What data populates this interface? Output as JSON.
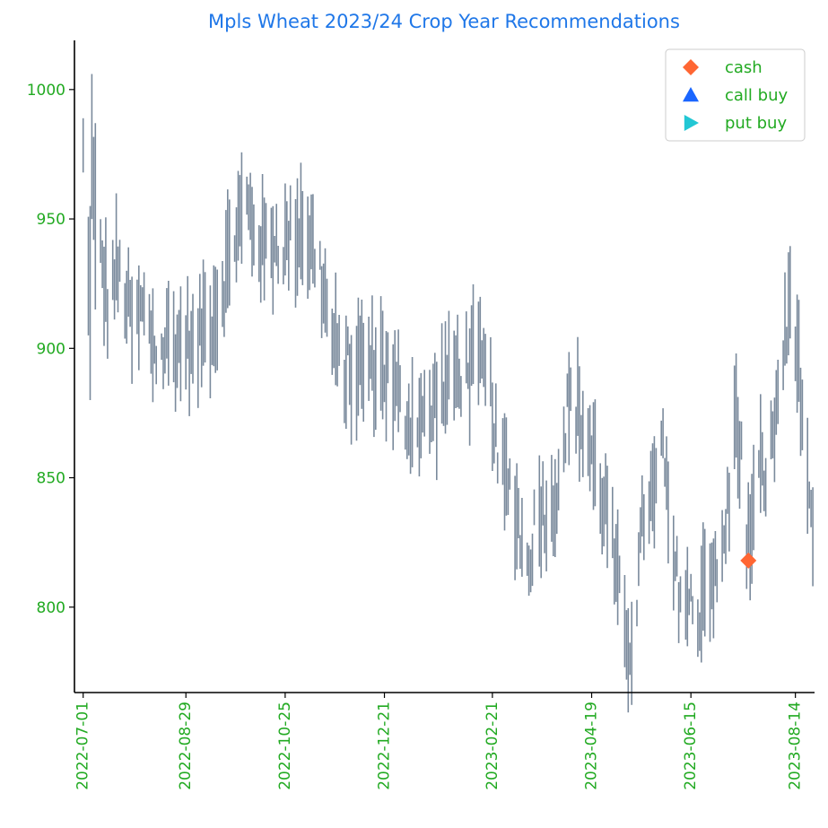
{
  "chart_data": {
    "type": "range-bar",
    "title": "Mpls Wheat 2023/24 Crop Year Recommendations",
    "xlabel": "",
    "ylabel": "",
    "x_axis": {
      "kind": "date",
      "range": [
        "2022-06-26",
        "2023-08-25"
      ],
      "tick_labels": [
        "2022-07-01",
        "2022-08-29",
        "2022-10-25",
        "2022-12-21",
        "2023-02-21",
        "2023-04-19",
        "2023-06-15",
        "2023-08-14"
      ]
    },
    "y_axis": {
      "range": [
        767,
        1019
      ],
      "tick_values": [
        800,
        850,
        900,
        950,
        1000
      ],
      "tick_labels": [
        "800",
        "850",
        "900",
        "950",
        "1000"
      ]
    },
    "series_color": "#7a8a9c",
    "anchors": [
      [
        "2022-07-01",
        975
      ],
      [
        "2022-07-04",
        925
      ],
      [
        "2022-07-08",
        968
      ],
      [
        "2022-07-11",
        935
      ],
      [
        "2022-07-15",
        918
      ],
      [
        "2022-07-20",
        930
      ],
      [
        "2022-07-25",
        922
      ],
      [
        "2022-07-30",
        905
      ],
      [
        "2022-08-04",
        915
      ],
      [
        "2022-08-09",
        905
      ],
      [
        "2022-08-14",
        895
      ],
      [
        "2022-08-19",
        905
      ],
      [
        "2022-08-24",
        900
      ],
      [
        "2022-08-29",
        905
      ],
      [
        "2022-09-03",
        895
      ],
      [
        "2022-09-08",
        910
      ],
      [
        "2022-09-13",
        912
      ],
      [
        "2022-09-18",
        920
      ],
      [
        "2022-09-23",
        935
      ],
      [
        "2022-09-28",
        948
      ],
      [
        "2022-10-03",
        955
      ],
      [
        "2022-10-08",
        945
      ],
      [
        "2022-10-13",
        938
      ],
      [
        "2022-10-18",
        942
      ],
      [
        "2022-10-25",
        940
      ],
      [
        "2022-10-30",
        945
      ],
      [
        "2022-11-04",
        948
      ],
      [
        "2022-11-09",
        940
      ],
      [
        "2022-11-14",
        930
      ],
      [
        "2022-11-19",
        910
      ],
      [
        "2022-11-24",
        895
      ],
      [
        "2022-11-29",
        893
      ],
      [
        "2022-12-04",
        890
      ],
      [
        "2022-12-09",
        895
      ],
      [
        "2022-12-14",
        893
      ],
      [
        "2022-12-21",
        893
      ],
      [
        "2022-12-26",
        885
      ],
      [
        "2022-12-31",
        877
      ],
      [
        "2023-01-05",
        872
      ],
      [
        "2023-01-10",
        875
      ],
      [
        "2023-01-15",
        870
      ],
      [
        "2023-01-20",
        882
      ],
      [
        "2023-01-25",
        885
      ],
      [
        "2023-01-30",
        890
      ],
      [
        "2023-02-05",
        892
      ],
      [
        "2023-02-10",
        895
      ],
      [
        "2023-02-15",
        892
      ],
      [
        "2023-02-21",
        880
      ],
      [
        "2023-02-24",
        855
      ],
      [
        "2023-03-01",
        848
      ],
      [
        "2023-03-05",
        845
      ],
      [
        "2023-03-10",
        825
      ],
      [
        "2023-03-13",
        815
      ],
      [
        "2023-03-18",
        835
      ],
      [
        "2023-03-22",
        840
      ],
      [
        "2023-03-27",
        835
      ],
      [
        "2023-04-01",
        858
      ],
      [
        "2023-04-05",
        875
      ],
      [
        "2023-04-09",
        880
      ],
      [
        "2023-04-14",
        870
      ],
      [
        "2023-04-19",
        860
      ],
      [
        "2023-04-24",
        845
      ],
      [
        "2023-04-29",
        835
      ],
      [
        "2023-05-03",
        810
      ],
      [
        "2023-05-07",
        795
      ],
      [
        "2023-05-11",
        785
      ],
      [
        "2023-05-15",
        805
      ],
      [
        "2023-05-20",
        845
      ],
      [
        "2023-05-25",
        840
      ],
      [
        "2023-05-30",
        865
      ],
      [
        "2023-06-02",
        830
      ],
      [
        "2023-06-07",
        810
      ],
      [
        "2023-06-11",
        805
      ],
      [
        "2023-06-15",
        800
      ],
      [
        "2023-06-18",
        790
      ],
      [
        "2023-06-22",
        810
      ],
      [
        "2023-06-26",
        815
      ],
      [
        "2023-06-30",
        808
      ],
      [
        "2023-07-04",
        825
      ],
      [
        "2023-07-08",
        850
      ],
      [
        "2023-07-11",
        875
      ],
      [
        "2023-07-14",
        858
      ],
      [
        "2023-07-17",
        818
      ],
      [
        "2023-07-20",
        835
      ],
      [
        "2023-07-24",
        850
      ],
      [
        "2023-07-28",
        853
      ],
      [
        "2023-08-01",
        862
      ],
      [
        "2023-08-05",
        892
      ],
      [
        "2023-08-09",
        905
      ],
      [
        "2023-08-12",
        930
      ],
      [
        "2023-08-15",
        898
      ],
      [
        "2023-08-18",
        875
      ],
      [
        "2023-08-21",
        840
      ],
      [
        "2023-08-23",
        828
      ],
      [
        "2023-08-26",
        815
      ],
      [
        "2023-08-29",
        808
      ]
    ],
    "markers": [
      {
        "label": "cash",
        "shape": "diamond",
        "color": "#ff6633",
        "x": "2023-07-18",
        "y": 818
      }
    ],
    "legend": {
      "position": "top-right",
      "entries": [
        {
          "label": "cash",
          "shape": "diamond",
          "color": "#ff6633"
        },
        {
          "label": "call buy",
          "shape": "triangle-up",
          "color": "#1a66ff"
        },
        {
          "label": "put buy",
          "shape": "triangle-right",
          "color": "#22c7d4"
        }
      ]
    }
  }
}
